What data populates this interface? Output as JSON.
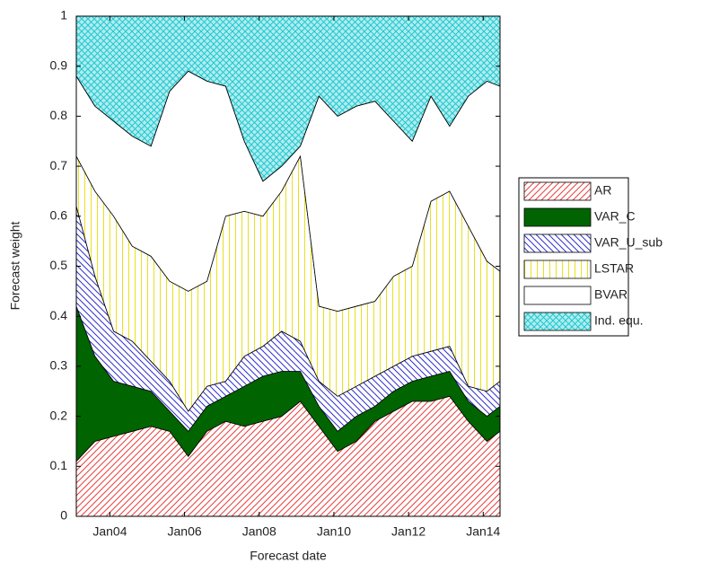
{
  "chart_data": {
    "type": "stacked-area",
    "xlabel": "Forecast date",
    "ylabel": "Forecast weight",
    "x": [
      2003.1,
      2003.6,
      2004.1,
      2004.6,
      2005.1,
      2005.6,
      2006.1,
      2006.6,
      2007.1,
      2007.6,
      2008.1,
      2008.6,
      2009.1,
      2009.6,
      2010.1,
      2010.6,
      2011.1,
      2011.6,
      2012.1,
      2012.6,
      2013.1,
      2013.6,
      2014.1,
      2014.45
    ],
    "xlim": [
      2003.1,
      2014.45
    ],
    "xticks": [
      {
        "value": 2004,
        "label": "Jan04"
      },
      {
        "value": 2006,
        "label": "Jan06"
      },
      {
        "value": 2008,
        "label": "Jan08"
      },
      {
        "value": 2010,
        "label": "Jan10"
      },
      {
        "value": 2012,
        "label": "Jan12"
      },
      {
        "value": 2014,
        "label": "Jan14"
      }
    ],
    "ylim": [
      0,
      1
    ],
    "yticks": [
      0,
      0.1,
      0.2,
      0.3,
      0.4,
      0.5,
      0.6,
      0.7,
      0.8,
      0.9,
      1
    ],
    "series": [
      {
        "name": "AR",
        "color": "#e84040",
        "pattern": "diagonal",
        "values": [
          0.11,
          0.15,
          0.16,
          0.17,
          0.18,
          0.17,
          0.12,
          0.17,
          0.19,
          0.18,
          0.19,
          0.2,
          0.23,
          0.18,
          0.13,
          0.15,
          0.19,
          0.21,
          0.23,
          0.23,
          0.24,
          0.19,
          0.15,
          0.17
        ]
      },
      {
        "name": "VAR_C",
        "color": "#006400",
        "pattern": "solid",
        "values": [
          0.31,
          0.17,
          0.11,
          0.09,
          0.07,
          0.04,
          0.05,
          0.05,
          0.05,
          0.08,
          0.09,
          0.09,
          0.06,
          0.04,
          0.04,
          0.05,
          0.03,
          0.04,
          0.04,
          0.05,
          0.05,
          0.04,
          0.05,
          0.05
        ]
      },
      {
        "name": "VAR_U_sub",
        "color": "#3030d0",
        "pattern": "back-diagonal",
        "values": [
          0.2,
          0.16,
          0.1,
          0.09,
          0.06,
          0.06,
          0.04,
          0.04,
          0.03,
          0.06,
          0.06,
          0.08,
          0.06,
          0.05,
          0.07,
          0.06,
          0.06,
          0.05,
          0.05,
          0.05,
          0.05,
          0.03,
          0.05,
          0.05
        ]
      },
      {
        "name": "LSTAR",
        "color": "#e8e020",
        "pattern": "vertical",
        "values": [
          0.1,
          0.17,
          0.23,
          0.19,
          0.21,
          0.2,
          0.24,
          0.21,
          0.33,
          0.29,
          0.26,
          0.28,
          0.37,
          0.15,
          0.17,
          0.16,
          0.15,
          0.18,
          0.18,
          0.3,
          0.31,
          0.32,
          0.26,
          0.22
        ]
      },
      {
        "name": "BVAR",
        "color": "#ffffff",
        "pattern": "solid",
        "values": [
          0.16,
          0.17,
          0.19,
          0.22,
          0.22,
          0.38,
          0.44,
          0.4,
          0.26,
          0.14,
          0.07,
          0.05,
          0.02,
          0.42,
          0.39,
          0.4,
          0.4,
          0.31,
          0.25,
          0.21,
          0.13,
          0.26,
          0.36,
          0.37
        ]
      },
      {
        "name": "Ind. equ.",
        "color": "#20c8d0",
        "pattern": "cross",
        "values": [
          0.12,
          0.18,
          0.21,
          0.24,
          0.26,
          0.15,
          0.11,
          0.13,
          0.14,
          0.25,
          0.33,
          0.3,
          0.26,
          0.16,
          0.2,
          0.18,
          0.17,
          0.21,
          0.25,
          0.16,
          0.22,
          0.16,
          0.13,
          0.14
        ]
      }
    ]
  }
}
